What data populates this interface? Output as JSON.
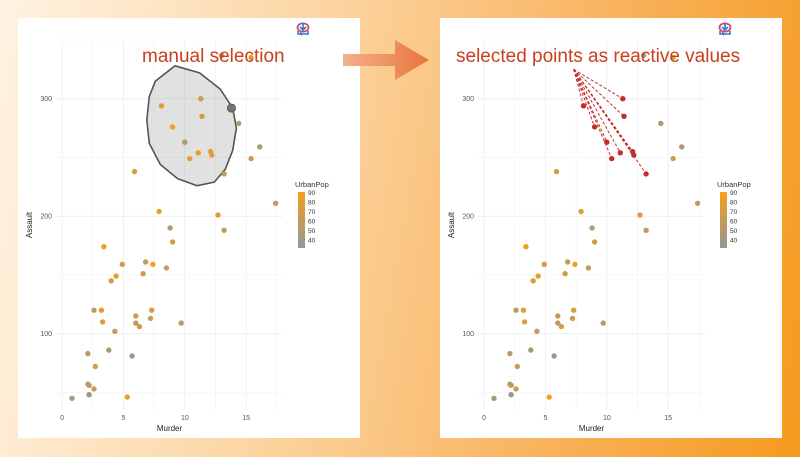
{
  "toolbar": {
    "icons": [
      "lasso-select-icon",
      "lasso-clear-icon",
      "download-icon"
    ]
  },
  "captions": {
    "left": "manual selection",
    "right": "selected points as reactive values"
  },
  "chart_data": [
    {
      "type": "scatter",
      "title": "",
      "xlabel": "Murder",
      "ylabel": "Assault",
      "xlim": [
        -0.5,
        18
      ],
      "ylim": [
        35,
        350
      ],
      "xticks": [
        0,
        5,
        10,
        15
      ],
      "yticks": [
        100,
        200,
        300
      ],
      "legend": {
        "title": "UrbanPop",
        "ticks": [
          90,
          80,
          70,
          60,
          50,
          40
        ],
        "range": [
          32,
          91
        ],
        "placement": "right"
      },
      "selection": "lasso",
      "points": [
        {
          "x": 13.2,
          "y": 236,
          "u": 58
        },
        {
          "x": 10.0,
          "y": 263,
          "u": 48
        },
        {
          "x": 8.1,
          "y": 294,
          "u": 80
        },
        {
          "x": 8.8,
          "y": 190,
          "u": 50
        },
        {
          "x": 9.0,
          "y": 276,
          "u": 91
        },
        {
          "x": 7.9,
          "y": 204,
          "u": 78
        },
        {
          "x": 3.3,
          "y": 110,
          "u": 77
        },
        {
          "x": 5.9,
          "y": 238,
          "u": 72
        },
        {
          "x": 15.4,
          "y": 335,
          "u": 80
        },
        {
          "x": 17.4,
          "y": 211,
          "u": 60
        },
        {
          "x": 5.3,
          "y": 46,
          "u": 83
        },
        {
          "x": 2.6,
          "y": 120,
          "u": 54
        },
        {
          "x": 10.4,
          "y": 249,
          "u": 83
        },
        {
          "x": 7.2,
          "y": 113,
          "u": 65
        },
        {
          "x": 2.2,
          "y": 56,
          "u": 57
        },
        {
          "x": 6.0,
          "y": 115,
          "u": 66
        },
        {
          "x": 9.7,
          "y": 109,
          "u": 52
        },
        {
          "x": 15.4,
          "y": 249,
          "u": 66
        },
        {
          "x": 2.1,
          "y": 83,
          "u": 51
        },
        {
          "x": 11.3,
          "y": 300,
          "u": 67
        },
        {
          "x": 4.4,
          "y": 149,
          "u": 85
        },
        {
          "x": 12.1,
          "y": 255,
          "u": 74
        },
        {
          "x": 2.7,
          "y": 72,
          "u": 66
        },
        {
          "x": 16.1,
          "y": 259,
          "u": 44
        },
        {
          "x": 9.0,
          "y": 178,
          "u": 70
        },
        {
          "x": 6.0,
          "y": 109,
          "u": 53
        },
        {
          "x": 4.3,
          "y": 102,
          "u": 62
        },
        {
          "x": 12.2,
          "y": 252,
          "u": 81
        },
        {
          "x": 2.1,
          "y": 57,
          "u": 56
        },
        {
          "x": 7.4,
          "y": 159,
          "u": 89
        },
        {
          "x": 11.4,
          "y": 285,
          "u": 70
        },
        {
          "x": 11.1,
          "y": 254,
          "u": 86
        },
        {
          "x": 13.0,
          "y": 337,
          "u": 45
        },
        {
          "x": 0.8,
          "y": 45,
          "u": 44
        },
        {
          "x": 7.3,
          "y": 120,
          "u": 75
        },
        {
          "x": 6.6,
          "y": 151,
          "u": 68
        },
        {
          "x": 4.9,
          "y": 159,
          "u": 67
        },
        {
          "x": 6.3,
          "y": 106,
          "u": 72
        },
        {
          "x": 3.4,
          "y": 174,
          "u": 87
        },
        {
          "x": 14.4,
          "y": 279,
          "u": 48
        },
        {
          "x": 3.8,
          "y": 86,
          "u": 45
        },
        {
          "x": 13.2,
          "y": 188,
          "u": 59
        },
        {
          "x": 12.7,
          "y": 201,
          "u": 80
        },
        {
          "x": 3.2,
          "y": 120,
          "u": 80
        },
        {
          "x": 2.2,
          "y": 48,
          "u": 32
        },
        {
          "x": 8.5,
          "y": 156,
          "u": 63
        },
        {
          "x": 4.0,
          "y": 145,
          "u": 73
        },
        {
          "x": 5.7,
          "y": 81,
          "u": 39
        },
        {
          "x": 2.6,
          "y": 53,
          "u": 66
        },
        {
          "x": 6.8,
          "y": 161,
          "u": 60
        }
      ]
    },
    {
      "type": "scatter",
      "title": "",
      "xlabel": "Murder",
      "ylabel": "Assault",
      "xlim": [
        -0.5,
        18
      ],
      "ylim": [
        35,
        350
      ],
      "xticks": [
        0,
        5,
        10,
        15
      ],
      "yticks": [
        100,
        200,
        300
      ],
      "legend": {
        "title": "UrbanPop",
        "ticks": [
          90,
          80,
          70,
          60,
          50,
          40
        ],
        "range": [
          32,
          91
        ],
        "placement": "right"
      },
      "selection": "highlighted",
      "selected_color": "#c0302a"
    }
  ]
}
